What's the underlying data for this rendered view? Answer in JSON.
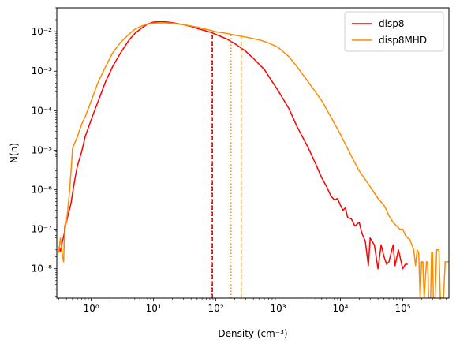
{
  "chart_data": {
    "type": "line",
    "xscale": "log",
    "yscale": "log",
    "xlabel": "Density (cm⁻³)",
    "ylabel": "N(n)",
    "xlim": [
      0.28,
      550000
    ],
    "ylim": [
      1.8e-09,
      0.04
    ],
    "grid": false,
    "legend_position": "top-right",
    "x_ticks": [
      {
        "value": 1,
        "label": "10⁰"
      },
      {
        "value": 10,
        "label": "10¹"
      },
      {
        "value": 100,
        "label": "10²"
      },
      {
        "value": 1000,
        "label": "10³"
      },
      {
        "value": 10000,
        "label": "10⁴"
      },
      {
        "value": 100000,
        "label": "10⁵"
      }
    ],
    "y_ticks": [
      {
        "value": 1e-08,
        "label": "10⁻⁸"
      },
      {
        "value": 1e-07,
        "label": "10⁻⁷"
      },
      {
        "value": 1e-06,
        "label": "10⁻⁶"
      },
      {
        "value": 1e-05,
        "label": "10⁻⁵"
      },
      {
        "value": 0.0001,
        "label": "10⁻⁴"
      },
      {
        "value": 0.001,
        "label": "10⁻³"
      },
      {
        "value": 0.01,
        "label": "10⁻²"
      }
    ],
    "series": [
      {
        "name": "disp8",
        "color": "#ff0000",
        "points": [
          [
            0.3,
            3.5e-08
          ],
          [
            0.32,
            2.8e-08
          ],
          [
            0.34,
            4.5e-08
          ],
          [
            0.37,
            8e-08
          ],
          [
            0.38,
            1.3e-07
          ],
          [
            0.4,
            1.5e-07
          ],
          [
            0.43,
            2.5e-07
          ],
          [
            0.47,
            4.3e-07
          ],
          [
            0.5,
            8e-07
          ],
          [
            0.55,
            2e-06
          ],
          [
            0.6,
            4e-06
          ],
          [
            0.7,
            9e-06
          ],
          [
            0.8,
            2.2e-05
          ],
          [
            1,
            6e-05
          ],
          [
            1.3,
            0.00018
          ],
          [
            1.7,
            0.00055
          ],
          [
            2.2,
            0.0013
          ],
          [
            3,
            0.003
          ],
          [
            4,
            0.006
          ],
          [
            5,
            0.009
          ],
          [
            6.5,
            0.0125
          ],
          [
            8,
            0.0155
          ],
          [
            10,
            0.0175
          ],
          [
            13,
            0.018
          ],
          [
            17,
            0.0175
          ],
          [
            22,
            0.0165
          ],
          [
            30,
            0.015
          ],
          [
            40,
            0.0135
          ],
          [
            50,
            0.012
          ],
          [
            65,
            0.0108
          ],
          [
            85,
            0.0095
          ],
          [
            110,
            0.008
          ],
          [
            150,
            0.0065
          ],
          [
            200,
            0.005
          ],
          [
            300,
            0.0032
          ],
          [
            400,
            0.0021
          ],
          [
            600,
            0.0011
          ],
          [
            800,
            0.00055
          ],
          [
            1000,
            0.00032
          ],
          [
            1500,
            0.00011
          ],
          [
            2000,
            4e-05
          ],
          [
            3000,
            1.2e-05
          ],
          [
            4000,
            4.5e-06
          ],
          [
            5000,
            2e-06
          ],
          [
            6000,
            1.2e-06
          ],
          [
            7000,
            7e-07
          ],
          [
            8000,
            5.5e-07
          ],
          [
            9000,
            6e-07
          ],
          [
            10000,
            4e-07
          ],
          [
            11000,
            3e-07
          ],
          [
            12000,
            3.5e-07
          ],
          [
            13000,
            2e-07
          ],
          [
            15000,
            1.8e-07
          ],
          [
            17000,
            1.2e-07
          ],
          [
            20000,
            1.5e-07
          ],
          [
            22000,
            8e-08
          ],
          [
            25000,
            5e-08
          ],
          [
            28000,
            1.2e-08
          ],
          [
            30000,
            6e-08
          ],
          [
            35000,
            4e-08
          ],
          [
            40000,
            1e-08
          ],
          [
            45000,
            4e-08
          ],
          [
            50000,
            2e-08
          ],
          [
            55000,
            1.3e-08
          ],
          [
            60000,
            1.5e-08
          ],
          [
            70000,
            4e-08
          ],
          [
            75000,
            1.2e-08
          ],
          [
            85000,
            3e-08
          ],
          [
            100000,
            1e-08
          ],
          [
            110000,
            1.3e-08
          ],
          [
            120000,
            1.3e-08
          ]
        ]
      },
      {
        "name": "disp8MHD",
        "color": "#ff8c00",
        "points": [
          [
            0.3,
            2.5e-08
          ],
          [
            0.32,
            6e-08
          ],
          [
            0.34,
            2.5e-08
          ],
          [
            0.36,
            1.5e-08
          ],
          [
            0.37,
            6e-08
          ],
          [
            0.38,
            1e-07
          ],
          [
            0.4,
            1.6e-07
          ],
          [
            0.42,
            3e-07
          ],
          [
            0.45,
            1e-06
          ],
          [
            0.48,
            4e-06
          ],
          [
            0.5,
            1.1e-05
          ],
          [
            0.55,
            1.6e-05
          ],
          [
            0.6,
            2.2e-05
          ],
          [
            0.7,
            4.5e-05
          ],
          [
            0.8,
            7e-05
          ],
          [
            1,
            0.00018
          ],
          [
            1.3,
            0.00055
          ],
          [
            1.7,
            0.0013
          ],
          [
            2.2,
            0.0029
          ],
          [
            3,
            0.0055
          ],
          [
            4,
            0.0085
          ],
          [
            5,
            0.0115
          ],
          [
            6.5,
            0.014
          ],
          [
            8,
            0.0155
          ],
          [
            10,
            0.0165
          ],
          [
            15,
            0.0168
          ],
          [
            20,
            0.0163
          ],
          [
            30,
            0.015
          ],
          [
            50,
            0.013
          ],
          [
            70,
            0.0115
          ],
          [
            100,
            0.01
          ],
          [
            150,
            0.009
          ],
          [
            200,
            0.0082
          ],
          [
            300,
            0.0073
          ],
          [
            500,
            0.0062
          ],
          [
            700,
            0.0052
          ],
          [
            1000,
            0.004
          ],
          [
            1500,
            0.0023
          ],
          [
            2000,
            0.0013
          ],
          [
            3000,
            0.00055
          ],
          [
            5000,
            0.00018
          ],
          [
            7000,
            7e-05
          ],
          [
            10000,
            2.5e-05
          ],
          [
            15000,
            7e-06
          ],
          [
            20000,
            3e-06
          ],
          [
            30000,
            1.2e-06
          ],
          [
            40000,
            6e-07
          ],
          [
            50000,
            4e-07
          ],
          [
            55000,
            3e-07
          ],
          [
            60000,
            2.2e-07
          ],
          [
            65000,
            1.8e-07
          ],
          [
            70000,
            1.5e-07
          ],
          [
            80000,
            1.2e-07
          ],
          [
            90000,
            1e-07
          ],
          [
            100000,
            1e-07
          ],
          [
            110000,
            7e-08
          ],
          [
            120000,
            6e-08
          ],
          [
            130000,
            5.5e-08
          ],
          [
            150000,
            3e-08
          ],
          [
            160000,
            1.2e-08
          ],
          [
            170000,
            3e-08
          ],
          [
            180000,
            2.5e-08
          ],
          [
            190000,
            1.8e-09
          ],
          [
            200000,
            1.5e-08
          ],
          [
            210000,
            1.5e-08
          ],
          [
            220000,
            1.8e-09
          ],
          [
            240000,
            1.5e-08
          ],
          [
            250000,
            1.5e-08
          ],
          [
            260000,
            1.8e-09
          ],
          [
            280000,
            1.8e-09
          ],
          [
            290000,
            2.5e-08
          ],
          [
            300000,
            2.5e-08
          ],
          [
            310000,
            1.8e-09
          ],
          [
            330000,
            1.8e-09
          ],
          [
            350000,
            3e-08
          ],
          [
            380000,
            3e-08
          ],
          [
            400000,
            1.8e-09
          ],
          [
            450000,
            1.8e-09
          ],
          [
            480000,
            1.5e-08
          ],
          [
            550000,
            1.5e-08
          ]
        ]
      }
    ],
    "vertical_lines": [
      {
        "x": 86,
        "color": "#ff0000",
        "style": "dotted",
        "y_top": 0.0095
      },
      {
        "x": 88,
        "color": "#ff0000",
        "style": "dashed",
        "y_top": 0.0095
      },
      {
        "x": 175,
        "color": "#ff8c00",
        "style": "dotted",
        "y_top": 0.0085
      },
      {
        "x": 255,
        "color": "#ff8c00",
        "style": "dashed",
        "y_top": 0.0078
      }
    ]
  }
}
